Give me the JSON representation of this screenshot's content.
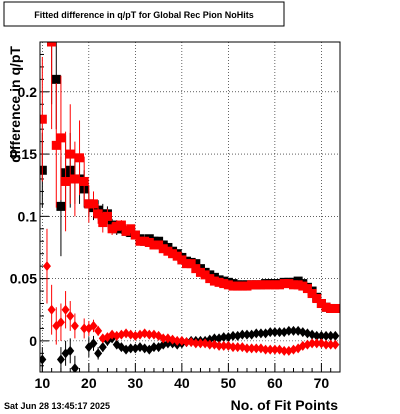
{
  "chart_data": {
    "type": "scatter",
    "title": "Fitted difference in q/pT for Global Rec Pion NoHits",
    "xlabel": "No. of Fit Points",
    "ylabel": "difference in q/pT",
    "xlim": [
      9.5,
      74
    ],
    "ylim": [
      -0.025,
      0.24
    ],
    "x_ticks": [
      10,
      20,
      30,
      40,
      50,
      60,
      70
    ],
    "x_tick_labels": [
      "10",
      "20",
      "30",
      "40",
      "50",
      "60",
      "70"
    ],
    "y_ticks": [
      0,
      0.05,
      0.1,
      0.15,
      0.2
    ],
    "y_tick_labels": [
      "0",
      "0.05",
      "0.1",
      "0.15",
      "0.2"
    ],
    "grid": true,
    "legend": "none",
    "series": [
      {
        "marker": "square",
        "color": "#000000",
        "x": [
          10,
          12,
          13,
          14,
          15,
          16,
          17,
          18,
          19,
          20,
          21,
          22,
          23,
          24,
          25,
          26,
          27,
          28,
          29,
          30,
          31,
          32,
          33,
          34,
          35,
          36,
          37,
          38,
          39,
          40,
          41,
          42,
          43,
          44,
          45,
          46,
          47,
          48,
          49,
          50,
          51,
          52,
          53,
          54,
          55,
          56,
          57,
          58,
          59,
          60,
          61,
          62,
          63,
          64,
          65,
          66,
          67,
          68,
          69,
          70,
          71,
          72,
          73
        ],
        "y": [
          0.137,
          0.24,
          0.21,
          0.108,
          0.135,
          0.137,
          0.13,
          0.13,
          0.122,
          0.11,
          0.107,
          0.105,
          0.102,
          0.102,
          0.093,
          0.09,
          0.09,
          0.088,
          0.087,
          0.085,
          0.082,
          0.08,
          0.082,
          0.08,
          0.08,
          0.077,
          0.075,
          0.072,
          0.07,
          0.067,
          0.064,
          0.063,
          0.062,
          0.058,
          0.055,
          0.053,
          0.051,
          0.049,
          0.048,
          0.047,
          0.046,
          0.045,
          0.045,
          0.045,
          0.045,
          0.045,
          0.045,
          0.046,
          0.046,
          0.046,
          0.046,
          0.047,
          0.047,
          0.047,
          0.048,
          0.046,
          0.043,
          0.04,
          0.035,
          0.03,
          0.027,
          0.026,
          0.026
        ],
        "err": [
          0.03,
          0.05,
          0.04,
          0.04,
          0.03,
          0.03,
          0.02,
          0.02,
          0.015,
          0.01,
          0.01,
          0.008,
          0.008,
          0.006,
          0.005,
          0.005,
          0.004,
          0.004,
          0.003,
          0.003,
          0.003,
          0.003,
          0.003,
          0.002,
          0.002,
          0.002,
          0.002,
          0.002,
          0.002,
          0.002,
          0.002,
          0.002,
          0.002,
          0.002,
          0.002,
          0.002,
          0.002,
          0.002,
          0.002,
          0.002,
          0.002,
          0.002,
          0.002,
          0.002,
          0.002,
          0.002,
          0.002,
          0.002,
          0.002,
          0.002,
          0.002,
          0.002,
          0.002,
          0.002,
          0.002,
          0.002,
          0.002,
          0.002,
          0.002,
          0.002,
          0.002,
          0.002,
          0.002
        ]
      },
      {
        "marker": "square",
        "color": "#ff0000",
        "x": [
          10,
          12,
          13,
          14,
          15,
          16,
          17,
          18,
          19,
          20,
          21,
          22,
          23,
          24,
          25,
          26,
          27,
          28,
          29,
          30,
          31,
          32,
          33,
          34,
          35,
          36,
          37,
          38,
          39,
          40,
          41,
          42,
          43,
          44,
          45,
          46,
          47,
          48,
          49,
          50,
          51,
          52,
          53,
          54,
          55,
          56,
          57,
          58,
          59,
          60,
          61,
          62,
          63,
          64,
          65,
          66,
          67,
          68,
          69,
          70,
          71,
          72,
          73
        ],
        "y": [
          0.178,
          0.24,
          0.157,
          0.163,
          0.128,
          0.15,
          0.13,
          0.147,
          0.128,
          0.11,
          0.11,
          0.102,
          0.095,
          0.1,
          0.09,
          0.092,
          0.093,
          0.088,
          0.09,
          0.085,
          0.08,
          0.08,
          0.079,
          0.077,
          0.077,
          0.074,
          0.072,
          0.07,
          0.068,
          0.065,
          0.062,
          0.062,
          0.058,
          0.055,
          0.053,
          0.05,
          0.048,
          0.047,
          0.046,
          0.045,
          0.044,
          0.044,
          0.044,
          0.044,
          0.045,
          0.045,
          0.045,
          0.045,
          0.045,
          0.045,
          0.045,
          0.046,
          0.046,
          0.045,
          0.045,
          0.044,
          0.042,
          0.038,
          0.034,
          0.03,
          0.027,
          0.026,
          0.026
        ],
        "err": [
          0.05,
          0.07,
          0.05,
          0.05,
          0.04,
          0.04,
          0.03,
          0.03,
          0.02,
          0.015,
          0.01,
          0.008,
          0.008,
          0.006,
          0.005,
          0.005,
          0.004,
          0.004,
          0.003,
          0.003,
          0.003,
          0.003,
          0.003,
          0.002,
          0.002,
          0.002,
          0.002,
          0.002,
          0.002,
          0.002,
          0.002,
          0.002,
          0.002,
          0.002,
          0.002,
          0.002,
          0.002,
          0.002,
          0.002,
          0.002,
          0.002,
          0.002,
          0.002,
          0.002,
          0.002,
          0.002,
          0.002,
          0.002,
          0.002,
          0.002,
          0.002,
          0.002,
          0.002,
          0.002,
          0.002,
          0.002,
          0.002,
          0.002,
          0.002,
          0.002,
          0.002,
          0.002,
          0.002
        ]
      },
      {
        "marker": "diamond",
        "color": "#000000",
        "x": [
          10,
          14,
          15,
          16,
          17,
          20,
          21,
          22,
          23,
          24,
          25,
          26,
          27,
          28,
          29,
          30,
          31,
          32,
          33,
          34,
          35,
          36,
          37,
          38,
          39,
          40,
          41,
          42,
          43,
          44,
          45,
          46,
          47,
          48,
          49,
          50,
          51,
          52,
          53,
          54,
          55,
          56,
          57,
          58,
          59,
          60,
          61,
          62,
          63,
          64,
          65,
          66,
          67,
          68,
          69,
          70,
          71,
          72,
          73
        ],
        "y": [
          -0.015,
          -0.015,
          -0.01,
          -0.008,
          -0.022,
          -0.005,
          -0.002,
          -0.01,
          -0.005,
          0.0,
          0.002,
          -0.003,
          -0.005,
          -0.007,
          -0.006,
          -0.006,
          -0.005,
          -0.006,
          -0.007,
          -0.005,
          -0.005,
          -0.003,
          -0.002,
          -0.002,
          -0.003,
          -0.002,
          -0.001,
          0.0,
          0.0,
          0.0,
          0.0,
          0.001,
          0.002,
          0.002,
          0.003,
          0.003,
          0.004,
          0.004,
          0.005,
          0.005,
          0.005,
          0.006,
          0.006,
          0.006,
          0.007,
          0.007,
          0.007,
          0.007,
          0.008,
          0.008,
          0.008,
          0.007,
          0.006,
          0.005,
          0.004,
          0.004,
          0.004,
          0.004,
          0.004
        ],
        "err": [
          0.01,
          0.01,
          0.01,
          0.01,
          0.01,
          0.008,
          0.006,
          0.005,
          0.004,
          0.004,
          0.003,
          0.003,
          0.003,
          0.002,
          0.002,
          0.002,
          0.002,
          0.002,
          0.002,
          0.002,
          0.002,
          0.002,
          0.002,
          0.002,
          0.002,
          0.002,
          0.002,
          0.002,
          0.002,
          0.002,
          0.002,
          0.002,
          0.002,
          0.002,
          0.002,
          0.002,
          0.002,
          0.002,
          0.002,
          0.002,
          0.002,
          0.002,
          0.002,
          0.002,
          0.002,
          0.002,
          0.002,
          0.002,
          0.002,
          0.002,
          0.002,
          0.002,
          0.002,
          0.002,
          0.002,
          0.002,
          0.002,
          0.002,
          0.002
        ]
      },
      {
        "marker": "diamond",
        "color": "#ff0000",
        "x": [
          11,
          12,
          13,
          14,
          15,
          16,
          17,
          19,
          20,
          21,
          22,
          23,
          24,
          25,
          26,
          27,
          28,
          29,
          30,
          31,
          32,
          33,
          34,
          35,
          36,
          37,
          38,
          39,
          40,
          41,
          42,
          43,
          44,
          45,
          46,
          47,
          48,
          49,
          50,
          51,
          52,
          53,
          54,
          55,
          56,
          57,
          58,
          59,
          60,
          61,
          62,
          63,
          64,
          65,
          66,
          67,
          68,
          69,
          70,
          71,
          72,
          73
        ],
        "y": [
          0.06,
          0.025,
          0.012,
          0.015,
          0.025,
          0.02,
          0.012,
          0.01,
          0.01,
          0.012,
          0.008,
          0.002,
          0.003,
          0.005,
          0.004,
          0.005,
          0.006,
          0.005,
          0.004,
          0.005,
          0.006,
          0.005,
          0.005,
          0.004,
          0.002,
          0.002,
          0.001,
          0.0,
          0.0,
          -0.001,
          -0.001,
          -0.002,
          -0.002,
          -0.002,
          -0.003,
          -0.003,
          -0.004,
          -0.004,
          -0.004,
          -0.005,
          -0.005,
          -0.005,
          -0.006,
          -0.006,
          -0.006,
          -0.006,
          -0.007,
          -0.007,
          -0.007,
          -0.007,
          -0.008,
          -0.008,
          -0.007,
          -0.006,
          -0.004,
          -0.003,
          -0.002,
          -0.002,
          -0.002,
          -0.003,
          -0.003,
          -0.003
        ],
        "err": [
          0.03,
          0.02,
          0.015,
          0.015,
          0.015,
          0.012,
          0.01,
          0.008,
          0.006,
          0.005,
          0.004,
          0.003,
          0.003,
          0.003,
          0.003,
          0.002,
          0.002,
          0.002,
          0.002,
          0.002,
          0.002,
          0.002,
          0.002,
          0.002,
          0.002,
          0.002,
          0.002,
          0.002,
          0.002,
          0.002,
          0.002,
          0.002,
          0.002,
          0.002,
          0.002,
          0.002,
          0.002,
          0.002,
          0.002,
          0.002,
          0.002,
          0.002,
          0.002,
          0.002,
          0.002,
          0.002,
          0.002,
          0.002,
          0.002,
          0.002,
          0.002,
          0.002,
          0.002,
          0.002,
          0.002,
          0.002,
          0.002,
          0.002,
          0.002,
          0.002,
          0.002,
          0.002
        ]
      }
    ]
  },
  "footer": {
    "date": "Sat Jun 28 13:45:17 2025"
  }
}
